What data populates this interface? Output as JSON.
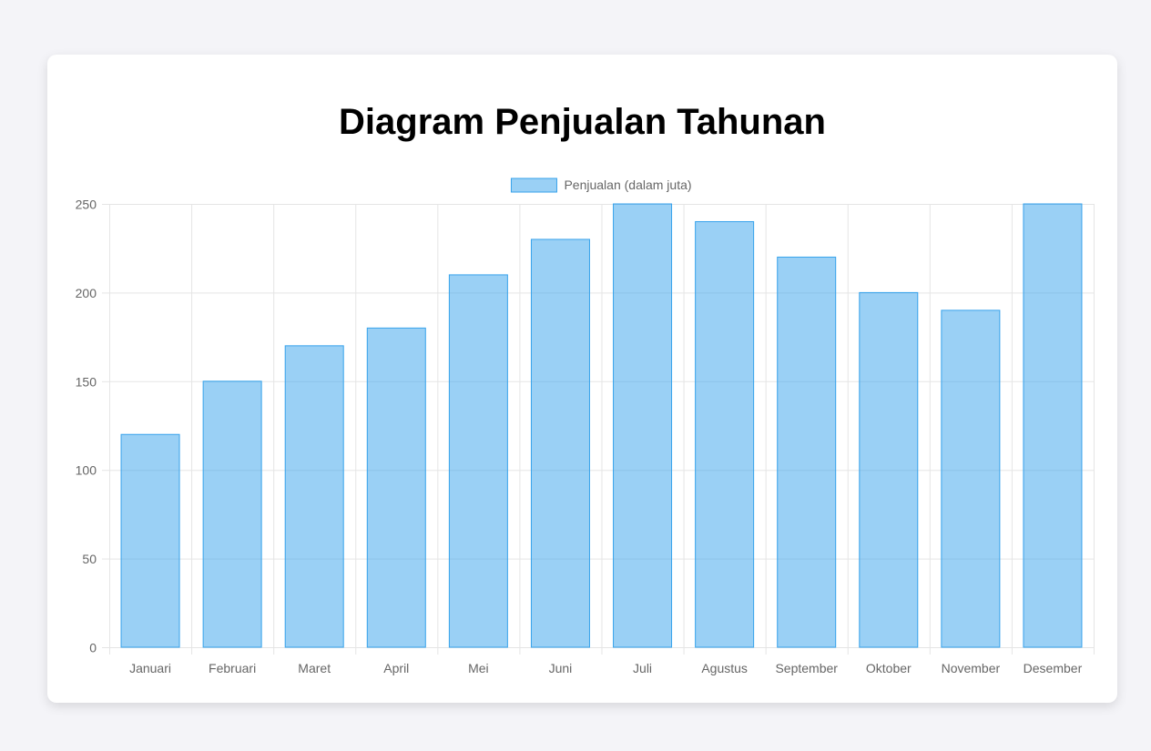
{
  "page": {
    "title": "Diagram Penjualan Tahunan"
  },
  "colors": {
    "background": "#f4f4f8",
    "card": "#ffffff",
    "bar_fill": "rgba(54,162,235,0.5)",
    "bar_border": "#36a2eb",
    "grid": "#e5e5e5",
    "tick_text": "#666666"
  },
  "chart_data": {
    "type": "bar",
    "categories": [
      "Januari",
      "Februari",
      "Maret",
      "April",
      "Mei",
      "Juni",
      "Juli",
      "Agustus",
      "September",
      "Oktober",
      "November",
      "Desember"
    ],
    "series": [
      {
        "name": "Penjualan (dalam juta)",
        "values": [
          120,
          150,
          170,
          180,
          210,
          230,
          250,
          240,
          220,
          200,
          190,
          250
        ]
      }
    ],
    "ylim": [
      0,
      250
    ],
    "yticks": [
      0,
      50,
      100,
      150,
      200,
      250
    ],
    "grid": true,
    "legend": "top-center"
  }
}
